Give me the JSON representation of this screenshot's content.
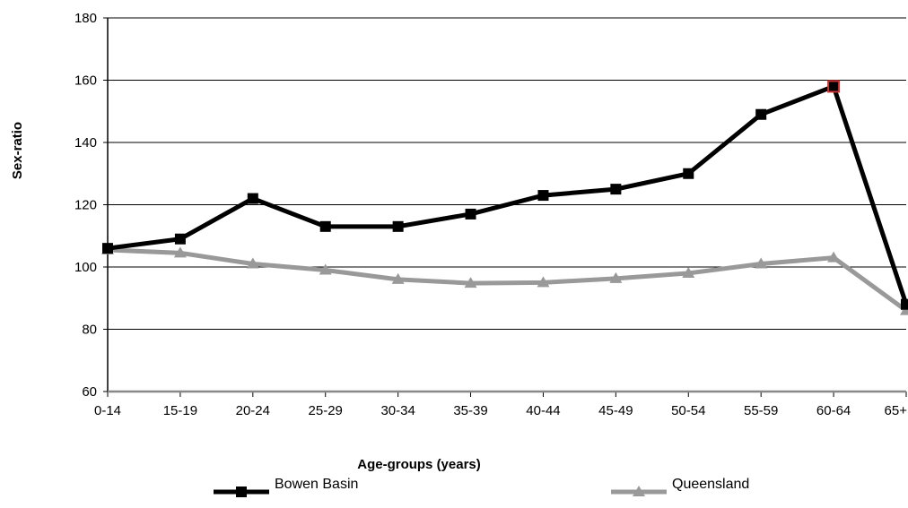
{
  "chart_data": {
    "type": "line",
    "title": "",
    "xlabel": "Age-groups (years)",
    "ylabel": "Sex-ratio",
    "ylim": [
      60,
      180
    ],
    "yticks": [
      60,
      80,
      100,
      120,
      140,
      160,
      180
    ],
    "grid": "horizontal",
    "legend_position": "bottom",
    "categories": [
      "0-14",
      "15-19",
      "20-24",
      "25-29",
      "30-34",
      "35-39",
      "40-44",
      "45-49",
      "50-54",
      "55-59",
      "60-64",
      "65+"
    ],
    "series": [
      {
        "name": "Bowen Basin",
        "color": "#000000",
        "marker": "square",
        "values": [
          106,
          109,
          122,
          113,
          113,
          117,
          123,
          125,
          130,
          149,
          158,
          88
        ]
      },
      {
        "name": "Queensland",
        "color": "#999999",
        "marker": "triangle",
        "values": [
          105.5,
          104.5,
          101,
          99,
          96,
          94.8,
          95,
          96.3,
          98,
          101,
          103,
          86
        ]
      }
    ],
    "highlight": {
      "series": "Bowen Basin",
      "category": "60-64",
      "color": "#cc3333"
    }
  }
}
